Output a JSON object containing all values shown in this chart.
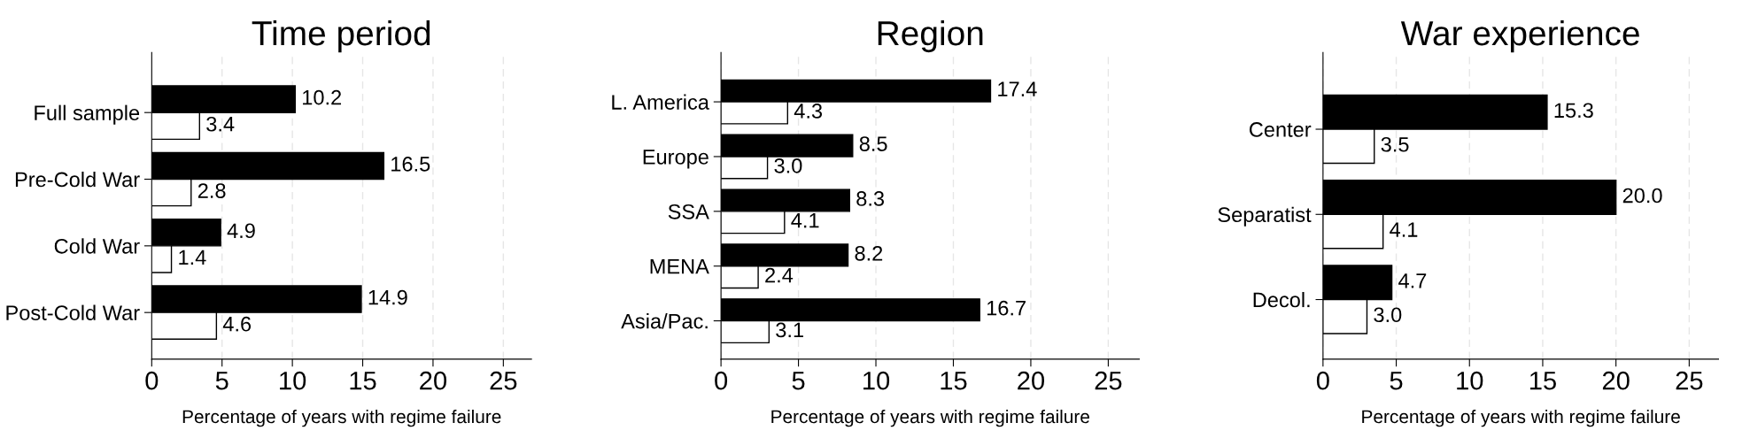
{
  "chart_data": [
    {
      "type": "bar",
      "orientation": "horizontal",
      "title": "Time period",
      "xlabel": "Percentage of years with regime failure",
      "categories": [
        "Full sample",
        "Pre-Cold War",
        "Cold War",
        "Post-Cold War"
      ],
      "series": [
        {
          "color": "#000000",
          "values": [
            10.2,
            16.5,
            4.9,
            14.9
          ],
          "value_labels": [
            "10.2",
            "16.5",
            "4.9",
            "14.9"
          ]
        },
        {
          "color": "#ffffff",
          "values": [
            3.4,
            2.8,
            1.4,
            4.6
          ],
          "value_labels": [
            "3.4",
            "2.8",
            "1.4",
            "4.6"
          ]
        }
      ],
      "xlim": [
        0,
        27
      ],
      "xticks": [
        0,
        5,
        10,
        15,
        20,
        25
      ],
      "grid": "x"
    },
    {
      "type": "bar",
      "orientation": "horizontal",
      "title": "Region",
      "xlabel": "Percentage of years with regime failure",
      "categories": [
        "L. America",
        "Europe",
        "SSA",
        "MENA",
        "Asia/Pac."
      ],
      "series": [
        {
          "color": "#000000",
          "values": [
            17.4,
            8.5,
            8.3,
            8.2,
            16.7
          ],
          "value_labels": [
            "17.4",
            "8.5",
            "8.3",
            "8.2",
            "16.7"
          ]
        },
        {
          "color": "#ffffff",
          "values": [
            4.3,
            3.0,
            4.1,
            2.4,
            3.1
          ],
          "value_labels": [
            "4.3",
            "3.0",
            "4.1",
            "2.4",
            "3.1"
          ]
        }
      ],
      "xlim": [
        0,
        27
      ],
      "xticks": [
        0,
        5,
        10,
        15,
        20,
        25
      ],
      "grid": "x"
    },
    {
      "type": "bar",
      "orientation": "horizontal",
      "title": "War experience",
      "xlabel": "Percentage of years with regime failure",
      "categories": [
        "Center",
        "Separatist",
        "Decol."
      ],
      "series": [
        {
          "color": "#000000",
          "values": [
            15.3,
            20.0,
            4.7
          ],
          "value_labels": [
            "15.3",
            "20.0",
            "4.7"
          ]
        },
        {
          "color": "#ffffff",
          "values": [
            3.5,
            4.1,
            3.0
          ],
          "value_labels": [
            "3.5",
            "4.1",
            "3.0"
          ]
        }
      ],
      "xlim": [
        0,
        27
      ],
      "xticks": [
        0,
        5,
        10,
        15,
        20,
        25
      ],
      "grid": "x"
    }
  ]
}
